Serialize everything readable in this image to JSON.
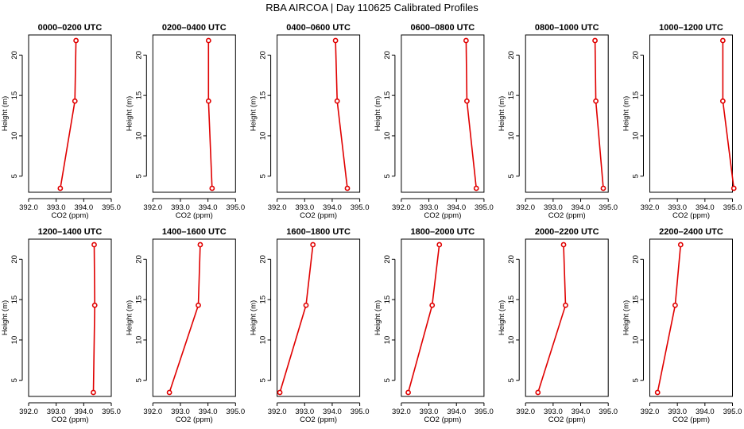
{
  "figure": {
    "title": "RBA AIRCOA  |  Day 110625  Calibrated Profiles"
  },
  "chart_data": [
    {
      "type": "line",
      "title": "0000–0200 UTC",
      "xlabel": "CO2 (ppm)",
      "ylabel": "Height (m)",
      "xlim": [
        392.0,
        395.0
      ],
      "ylim": [
        3.5,
        22.0
      ],
      "xticks": [
        "392.0",
        "393.0",
        "394.0",
        "395.0"
      ],
      "yticks": [
        "5",
        "10",
        "15",
        "20"
      ],
      "points": [
        {
          "x": 393.15,
          "y": 3.5
        },
        {
          "x": 393.68,
          "y": 14.3
        },
        {
          "x": 393.72,
          "y": 21.8
        }
      ]
    },
    {
      "type": "line",
      "title": "0200–0400 UTC",
      "xlabel": "CO2 (ppm)",
      "ylabel": "Height (m)",
      "xlim": [
        392.0,
        395.0
      ],
      "ylim": [
        3.5,
        22.0
      ],
      "xticks": [
        "392.0",
        "393.0",
        "394.0",
        "395.0"
      ],
      "yticks": [
        "5",
        "10",
        "15",
        "20"
      ],
      "points": [
        {
          "x": 394.15,
          "y": 3.5
        },
        {
          "x": 394.02,
          "y": 14.3
        },
        {
          "x": 394.02,
          "y": 21.8
        }
      ]
    },
    {
      "type": "line",
      "title": "0400–0600 UTC",
      "xlabel": "CO2 (ppm)",
      "ylabel": "Height (m)",
      "xlim": [
        392.0,
        395.0
      ],
      "ylim": [
        3.5,
        22.0
      ],
      "xticks": [
        "392.0",
        "393.0",
        "394.0",
        "395.0"
      ],
      "yticks": [
        "5",
        "10",
        "15",
        "20"
      ],
      "points": [
        {
          "x": 394.55,
          "y": 3.5
        },
        {
          "x": 394.18,
          "y": 14.3
        },
        {
          "x": 394.12,
          "y": 21.8
        }
      ]
    },
    {
      "type": "line",
      "title": "0600–0800 UTC",
      "xlabel": "CO2 (ppm)",
      "ylabel": "Height (m)",
      "xlim": [
        392.0,
        395.0
      ],
      "ylim": [
        3.5,
        22.0
      ],
      "xticks": [
        "392.0",
        "393.0",
        "394.0",
        "395.0"
      ],
      "yticks": [
        "5",
        "10",
        "15",
        "20"
      ],
      "points": [
        {
          "x": 394.72,
          "y": 3.5
        },
        {
          "x": 394.38,
          "y": 14.3
        },
        {
          "x": 394.35,
          "y": 21.8
        }
      ]
    },
    {
      "type": "line",
      "title": "0800–1000 UTC",
      "xlabel": "CO2 (ppm)",
      "ylabel": "Height (m)",
      "xlim": [
        392.0,
        395.0
      ],
      "ylim": [
        3.5,
        22.0
      ],
      "xticks": [
        "392.0",
        "393.0",
        "394.0",
        "395.0"
      ],
      "yticks": [
        "5",
        "10",
        "15",
        "20"
      ],
      "points": [
        {
          "x": 394.82,
          "y": 3.5
        },
        {
          "x": 394.55,
          "y": 14.3
        },
        {
          "x": 394.52,
          "y": 21.8
        }
      ]
    },
    {
      "type": "line",
      "title": "1000–1200 UTC",
      "xlabel": "CO2 (ppm)",
      "ylabel": "Height (m)",
      "xlim": [
        392.0,
        395.0
      ],
      "ylim": [
        3.5,
        22.0
      ],
      "xticks": [
        "392.0",
        "393.0",
        "394.0",
        "395.0"
      ],
      "yticks": [
        "5",
        "10",
        "15",
        "20"
      ],
      "points": [
        {
          "x": 395.05,
          "y": 3.5
        },
        {
          "x": 394.65,
          "y": 14.3
        },
        {
          "x": 394.65,
          "y": 21.8
        }
      ]
    },
    {
      "type": "line",
      "title": "1200–1400 UTC",
      "xlabel": "CO2 (ppm)",
      "ylabel": "Height (m)",
      "xlim": [
        392.0,
        395.0
      ],
      "ylim": [
        3.5,
        22.0
      ],
      "xticks": [
        "392.0",
        "393.0",
        "394.0",
        "395.0"
      ],
      "yticks": [
        "5",
        "10",
        "15",
        "20"
      ],
      "points": [
        {
          "x": 394.35,
          "y": 3.5
        },
        {
          "x": 394.4,
          "y": 14.3
        },
        {
          "x": 394.38,
          "y": 21.8
        }
      ]
    },
    {
      "type": "line",
      "title": "1400–1600 UTC",
      "xlabel": "CO2 (ppm)",
      "ylabel": "Height (m)",
      "xlim": [
        392.0,
        395.0
      ],
      "ylim": [
        3.5,
        22.0
      ],
      "xticks": [
        "392.0",
        "393.0",
        "394.0",
        "395.0"
      ],
      "yticks": [
        "5",
        "10",
        "15",
        "20"
      ],
      "points": [
        {
          "x": 392.6,
          "y": 3.5
        },
        {
          "x": 393.65,
          "y": 14.3
        },
        {
          "x": 393.72,
          "y": 21.8
        }
      ]
    },
    {
      "type": "line",
      "title": "1600–1800 UTC",
      "xlabel": "CO2 (ppm)",
      "ylabel": "Height (m)",
      "xlim": [
        392.0,
        395.0
      ],
      "ylim": [
        3.5,
        22.0
      ],
      "xticks": [
        "392.0",
        "393.0",
        "394.0",
        "395.0"
      ],
      "yticks": [
        "5",
        "10",
        "15",
        "20"
      ],
      "points": [
        {
          "x": 392.1,
          "y": 3.5
        },
        {
          "x": 393.05,
          "y": 14.3
        },
        {
          "x": 393.3,
          "y": 21.8
        }
      ]
    },
    {
      "type": "line",
      "title": "1800–2000 UTC",
      "xlabel": "CO2 (ppm)",
      "ylabel": "Height (m)",
      "xlim": [
        392.0,
        395.0
      ],
      "ylim": [
        3.5,
        22.0
      ],
      "xticks": [
        "392.0",
        "393.0",
        "394.0",
        "395.0"
      ],
      "yticks": [
        "5",
        "10",
        "15",
        "20"
      ],
      "points": [
        {
          "x": 392.25,
          "y": 3.5
        },
        {
          "x": 393.12,
          "y": 14.3
        },
        {
          "x": 393.38,
          "y": 21.8
        }
      ]
    },
    {
      "type": "line",
      "title": "2000–2200 UTC",
      "xlabel": "CO2 (ppm)",
      "ylabel": "Height (m)",
      "xlim": [
        392.0,
        395.0
      ],
      "ylim": [
        3.5,
        22.0
      ],
      "xticks": [
        "392.0",
        "393.0",
        "394.0",
        "395.0"
      ],
      "yticks": [
        "5",
        "10",
        "15",
        "20"
      ],
      "points": [
        {
          "x": 392.45,
          "y": 3.5
        },
        {
          "x": 393.45,
          "y": 14.3
        },
        {
          "x": 393.38,
          "y": 21.8
        }
      ]
    },
    {
      "type": "line",
      "title": "2200–2400 UTC",
      "xlabel": "CO2 (ppm)",
      "ylabel": "Height (m)",
      "xlim": [
        392.0,
        395.0
      ],
      "ylim": [
        3.5,
        22.0
      ],
      "xticks": [
        "392.0",
        "393.0",
        "394.0",
        "395.0"
      ],
      "yticks": [
        "5",
        "10",
        "15",
        "20"
      ],
      "points": [
        {
          "x": 392.28,
          "y": 3.5
        },
        {
          "x": 392.92,
          "y": 14.3
        },
        {
          "x": 393.12,
          "y": 21.8
        }
      ]
    }
  ]
}
